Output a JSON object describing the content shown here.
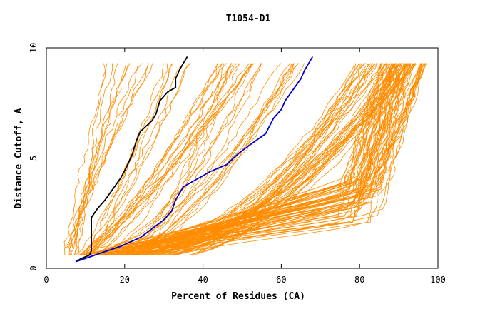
{
  "chart_data": {
    "type": "line",
    "title": "T1054-D1",
    "xlabel": "Percent of Residues (CA)",
    "ylabel": "Distance Cutoff, A",
    "xlim": [
      0,
      100
    ],
    "ylim": [
      0,
      10
    ],
    "x_ticks": [
      "0",
      "20",
      "40",
      "60",
      "80",
      "100"
    ],
    "y_ticks": [
      "0",
      "5",
      "10"
    ],
    "grid": false,
    "colors": {
      "background_series": "#ff8c00",
      "highlight_black": "#000000",
      "highlight_blue": "#0000cc"
    },
    "highlight_series": [
      {
        "color": "#000000",
        "points": [
          [
            7.5,
            0.3
          ],
          [
            9,
            0.45
          ],
          [
            11,
            0.6
          ],
          [
            11.5,
            0.8
          ],
          [
            11.5,
            1.5
          ],
          [
            11.5,
            2.3
          ],
          [
            13,
            2.7
          ],
          [
            15,
            3.1
          ],
          [
            17,
            3.6
          ],
          [
            19,
            4.1
          ],
          [
            20.5,
            4.6
          ],
          [
            22,
            5.2
          ],
          [
            23,
            5.8
          ],
          [
            24,
            6.2
          ],
          [
            27,
            6.7
          ],
          [
            28,
            7.0
          ],
          [
            29,
            7.6
          ],
          [
            30,
            7.8
          ],
          [
            31,
            8.0
          ],
          [
            33,
            8.2
          ],
          [
            33,
            8.6
          ],
          [
            34,
            9.0
          ],
          [
            35,
            9.3
          ],
          [
            36,
            9.6
          ]
        ]
      },
      {
        "color": "#0000cc",
        "points": [
          [
            7.5,
            0.3
          ],
          [
            10,
            0.45
          ],
          [
            14,
            0.7
          ],
          [
            19,
            1.0
          ],
          [
            24,
            1.4
          ],
          [
            27,
            1.8
          ],
          [
            30,
            2.2
          ],
          [
            32,
            2.6
          ],
          [
            33,
            3.1
          ],
          [
            35,
            3.7
          ],
          [
            38,
            4.0
          ],
          [
            42,
            4.4
          ],
          [
            46,
            4.7
          ],
          [
            49,
            5.2
          ],
          [
            52,
            5.6
          ],
          [
            56,
            6.1
          ],
          [
            58,
            6.8
          ],
          [
            60,
            7.2
          ],
          [
            61,
            7.6
          ],
          [
            63,
            8.1
          ],
          [
            65,
            8.6
          ],
          [
            66,
            9.0
          ],
          [
            68,
            9.6
          ]
        ]
      }
    ],
    "background_series_groups": [
      {
        "n": 12,
        "start_x": [
          4,
          10
        ],
        "shape": "early_steep",
        "end_x": [
          14,
          30
        ]
      },
      {
        "n": 20,
        "start_x": [
          6,
          12
        ],
        "shape": "mid_curve",
        "end_x": [
          30,
          56
        ]
      },
      {
        "n": 18,
        "start_x": [
          10,
          20
        ],
        "shape": "plateau_mid",
        "end_x": [
          45,
          70
        ]
      },
      {
        "n": 60,
        "start_x": [
          7,
          22
        ],
        "shape": "late_steep",
        "end_x": [
          86,
          98
        ]
      },
      {
        "n": 40,
        "start_x": [
          10,
          30
        ],
        "shape": "convex_right",
        "end_x": [
          80,
          96
        ]
      }
    ]
  }
}
